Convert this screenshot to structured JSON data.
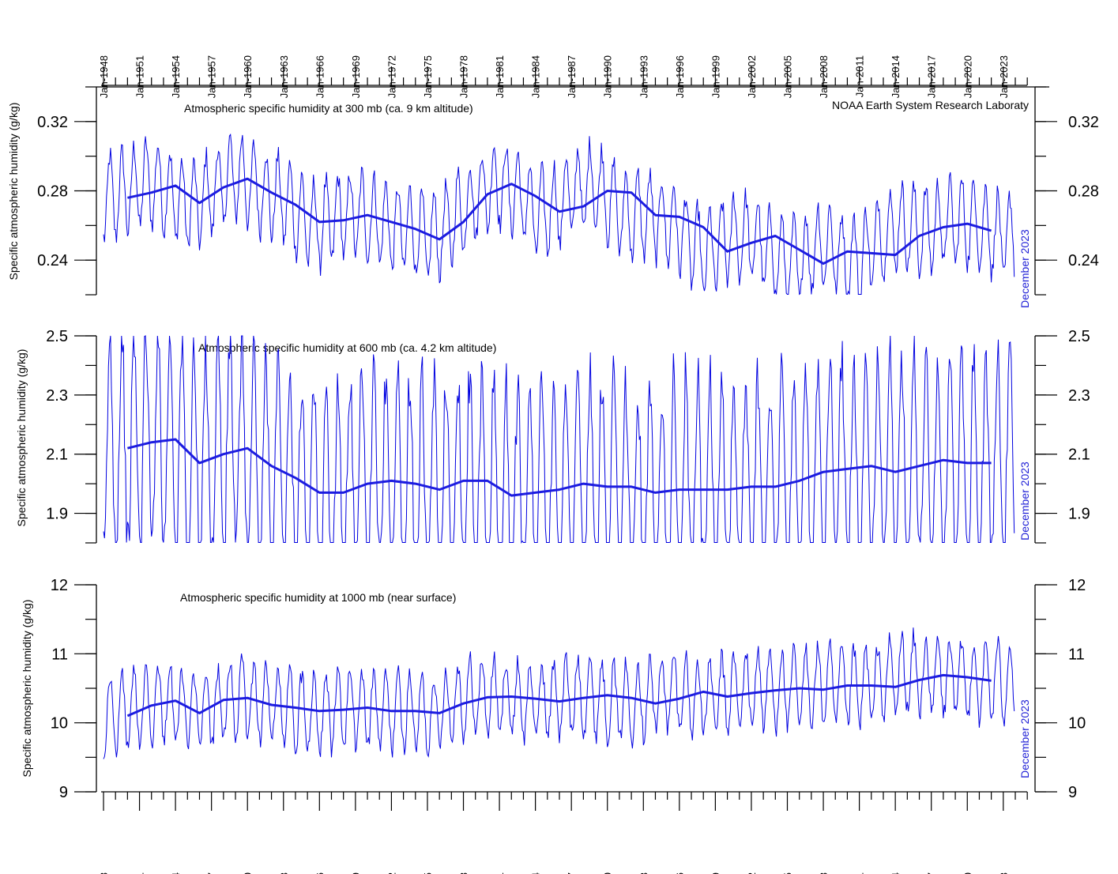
{
  "source": "NOAA Earth System Research Laboraty",
  "last_observation_label": "December 2023",
  "colors": {
    "monthly": "#0000e0",
    "smooth": "#1c1ce0",
    "last_label": "#1f1fd6",
    "axes": "#000000"
  },
  "x_tick_labels": [
    "Jan-1948",
    "Jan-1951",
    "Jan-1954",
    "Jan-1957",
    "Jan-1960",
    "Jan-1963",
    "Jan-1966",
    "Jan-1969",
    "Jan-1972",
    "Jan-1975",
    "Jan-1978",
    "Jan-1981",
    "Jan-1984",
    "Jan-1987",
    "Jan-1990",
    "Jan-1993",
    "Jan-1996",
    "Jan-1999",
    "Jan-2002",
    "Jan-2005",
    "Jan-2008",
    "Jan-2011",
    "Jan-2014",
    "Jan-2017",
    "Jan-2020",
    "Jan-2023"
  ],
  "chart_data": [
    {
      "type": "line",
      "title": "Atmospheric specific humidity at 300 mb (ca. 9 km altitude)",
      "ylabel": "Specific atmospheric humidity (g/kg)",
      "xlabel": "",
      "xlim": [
        1948,
        2025
      ],
      "ylim": [
        0.22,
        0.34
      ],
      "y_tick_labels": [
        "0.24",
        "0.28",
        "0.32"
      ],
      "grid": false,
      "series": [
        {
          "style": "monthly",
          "x_start": "Jan-1948",
          "x_end": "Dec-2023",
          "annual_mean": [
            0.276,
            0.277,
            0.28,
            0.283,
            0.285,
            0.281,
            0.276,
            0.271,
            0.273,
            0.279,
            0.284,
            0.289,
            0.285,
            0.28,
            0.277,
            0.275,
            0.268,
            0.262,
            0.26,
            0.263,
            0.266,
            0.267,
            0.265,
            0.262,
            0.259,
            0.258,
            0.256,
            0.252,
            0.255,
            0.262,
            0.269,
            0.276,
            0.282,
            0.284,
            0.281,
            0.275,
            0.267,
            0.268,
            0.272,
            0.279,
            0.281,
            0.284,
            0.276,
            0.268,
            0.265,
            0.266,
            0.265,
            0.262,
            0.258,
            0.25,
            0.243,
            0.246,
            0.252,
            0.254,
            0.252,
            0.248,
            0.242,
            0.238,
            0.24,
            0.245,
            0.249,
            0.246,
            0.24,
            0.241,
            0.248,
            0.254,
            0.259,
            0.259,
            0.257,
            0.258,
            0.261,
            0.262,
            0.262,
            0.261,
            0.256,
            0.253
          ],
          "seasonal_amplitude": 0.024
        },
        {
          "style": "smooth",
          "x": [
            1950,
            1952,
            1954,
            1956,
            1958,
            1960,
            1962,
            1964,
            1966,
            1968,
            1970,
            1972,
            1974,
            1976,
            1978,
            1980,
            1982,
            1984,
            1986,
            1988,
            1990,
            1992,
            1994,
            1996,
            1998,
            2000,
            2002,
            2004,
            2006,
            2008,
            2010,
            2012,
            2014,
            2016,
            2018,
            2020,
            2022
          ],
          "y": [
            0.276,
            0.279,
            0.283,
            0.273,
            0.282,
            0.287,
            0.279,
            0.272,
            0.262,
            0.263,
            0.266,
            0.262,
            0.258,
            0.252,
            0.262,
            0.278,
            0.284,
            0.277,
            0.268,
            0.271,
            0.28,
            0.279,
            0.266,
            0.265,
            0.259,
            0.245,
            0.25,
            0.254,
            0.246,
            0.238,
            0.245,
            0.244,
            0.243,
            0.254,
            0.259,
            0.261,
            0.257
          ]
        }
      ]
    },
    {
      "type": "line",
      "title": "Atmospheric specific humidity at 600 mb (ca. 4.2 km altitude)",
      "ylabel": "Specific atmospheric humidity (g/kg)",
      "xlabel": "",
      "xlim": [
        1948,
        2025
      ],
      "ylim": [
        1.8,
        2.5
      ],
      "y_tick_labels": [
        "1.9",
        "2.1",
        "2.3",
        "2.5"
      ],
      "grid": false,
      "series": [
        {
          "style": "monthly",
          "x_start": "Jan-1948",
          "x_end": "Dec-2023",
          "annual_mean": [
            2.11,
            2.12,
            2.13,
            2.14,
            2.15,
            2.16,
            2.13,
            2.08,
            2.07,
            2.09,
            2.12,
            2.13,
            2.09,
            2.06,
            2.04,
            2.02,
            1.99,
            1.97,
            1.96,
            1.97,
            1.99,
            2.0,
            2.0,
            2.0,
            2.01,
            2.01,
            1.99,
            1.97,
            1.99,
            2.01,
            2.02,
            2.01,
            1.98,
            1.96,
            1.96,
            1.97,
            1.98,
            1.99,
            2.0,
            2.0,
            1.99,
            1.99,
            1.98,
            1.97,
            1.97,
            1.98,
            1.97,
            1.98,
            1.99,
            1.99,
            1.98,
            1.98,
            1.99,
            1.99,
            1.99,
            1.98,
            1.99,
            2.0,
            2.03,
            2.04,
            2.04,
            2.05,
            2.06,
            2.05,
            2.04,
            2.05,
            2.06,
            2.07,
            2.08,
            2.07,
            2.06,
            2.06,
            2.06,
            2.07,
            2.08,
            2.08
          ],
          "seasonal_amplitude": 0.37
        },
        {
          "style": "smooth",
          "x": [
            1950,
            1952,
            1954,
            1956,
            1958,
            1960,
            1962,
            1964,
            1966,
            1968,
            1970,
            1972,
            1974,
            1976,
            1978,
            1980,
            1982,
            1984,
            1986,
            1988,
            1990,
            1992,
            1994,
            1996,
            1998,
            2000,
            2002,
            2004,
            2006,
            2008,
            2010,
            2012,
            2014,
            2016,
            2018,
            2020,
            2022
          ],
          "y": [
            2.12,
            2.14,
            2.15,
            2.07,
            2.1,
            2.12,
            2.06,
            2.02,
            1.97,
            1.97,
            2.0,
            2.01,
            2.0,
            1.98,
            2.01,
            2.01,
            1.96,
            1.97,
            1.98,
            2.0,
            1.99,
            1.99,
            1.97,
            1.98,
            1.98,
            1.98,
            1.99,
            1.99,
            2.01,
            2.04,
            2.05,
            2.06,
            2.04,
            2.06,
            2.08,
            2.07,
            2.07
          ]
        }
      ]
    },
    {
      "type": "line",
      "title": "Atmospheric specific humidity at 1000 mb (near surface)",
      "ylabel": "Specific atmospheric humidity (g/kg)",
      "xlabel": "",
      "xlim": [
        1948,
        2025
      ],
      "ylim": [
        9,
        12
      ],
      "y_tick_labels": [
        "9",
        "10",
        "11",
        "12"
      ],
      "grid": false,
      "series": [
        {
          "style": "monthly",
          "x_start": "Jan-1948",
          "x_end": "Dec-2023",
          "annual_mean": [
            10.1,
            10.12,
            10.18,
            10.25,
            10.3,
            10.32,
            10.26,
            10.18,
            10.15,
            10.2,
            10.3,
            10.36,
            10.34,
            10.3,
            10.27,
            10.24,
            10.2,
            10.18,
            10.17,
            10.18,
            10.21,
            10.22,
            10.2,
            10.17,
            10.16,
            10.18,
            10.15,
            10.12,
            10.18,
            10.28,
            10.35,
            10.38,
            10.39,
            10.37,
            10.35,
            10.31,
            10.3,
            10.33,
            10.36,
            10.39,
            10.4,
            10.38,
            10.33,
            10.28,
            10.3,
            10.35,
            10.42,
            10.45,
            10.44,
            10.38,
            10.35,
            10.38,
            10.42,
            10.46,
            10.49,
            10.5,
            10.48,
            10.48,
            10.5,
            10.54,
            10.55,
            10.54,
            10.52,
            10.51,
            10.55,
            10.62,
            10.68,
            10.71,
            10.69,
            10.66,
            10.67,
            10.66,
            10.62,
            10.6,
            10.62,
            10.6
          ],
          "seasonal_amplitude": 0.55
        },
        {
          "style": "smooth",
          "x": [
            1950,
            1952,
            1954,
            1956,
            1958,
            1960,
            1962,
            1964,
            1966,
            1968,
            1970,
            1972,
            1974,
            1976,
            1978,
            1980,
            1982,
            1984,
            1986,
            1988,
            1990,
            1992,
            1994,
            1996,
            1998,
            2000,
            2002,
            2004,
            2006,
            2008,
            2010,
            2012,
            2014,
            2016,
            2018,
            2020,
            2022
          ],
          "y": [
            10.1,
            10.25,
            10.32,
            10.14,
            10.33,
            10.36,
            10.26,
            10.22,
            10.17,
            10.19,
            10.22,
            10.17,
            10.17,
            10.14,
            10.28,
            10.37,
            10.38,
            10.35,
            10.31,
            10.36,
            10.4,
            10.36,
            10.28,
            10.35,
            10.45,
            10.38,
            10.43,
            10.47,
            10.5,
            10.48,
            10.54,
            10.54,
            10.52,
            10.62,
            10.69,
            10.66,
            10.61
          ]
        }
      ]
    }
  ]
}
